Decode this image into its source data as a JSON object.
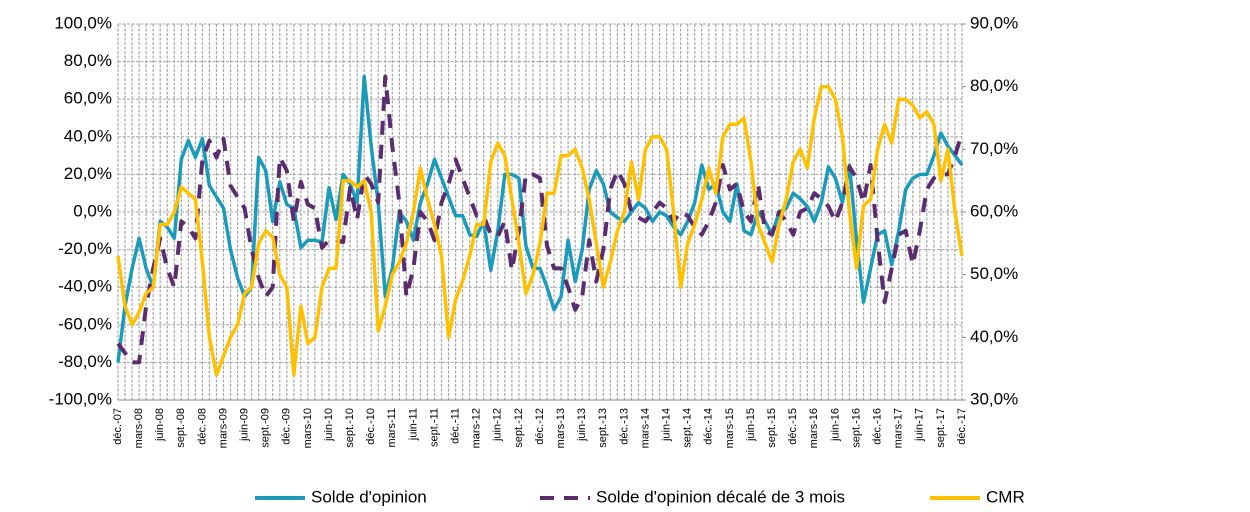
{
  "chart_data": {
    "type": "line",
    "categories": [
      "déc.-07",
      null,
      null,
      "mars-08",
      null,
      null,
      "juin-08",
      null,
      null,
      "sept.-08",
      null,
      null,
      "déc.-08",
      null,
      null,
      "mars-09",
      null,
      null,
      "juin-09",
      null,
      null,
      "sept.-09",
      null,
      null,
      "déc.-09",
      null,
      null,
      "mars-10",
      null,
      null,
      "juin-10",
      null,
      null,
      "sept.-10",
      null,
      null,
      "déc.-10",
      null,
      null,
      "mars-11",
      null,
      null,
      "juin-11",
      null,
      null,
      "sept.-11",
      null,
      null,
      "déc.-11",
      null,
      null,
      "mars-12",
      null,
      null,
      "juin-12",
      null,
      null,
      "sept.-12",
      null,
      null,
      "déc.-12",
      null,
      null,
      "mars-13",
      null,
      null,
      "juin-13",
      null,
      null,
      "sept.-13",
      null,
      null,
      "déc.-13",
      null,
      null,
      "mars-14",
      null,
      null,
      "juin-14",
      null,
      null,
      "sept.-14",
      null,
      null,
      "déc.-14",
      null,
      null,
      "mars-15",
      null,
      null,
      "juin-15",
      null,
      null,
      "sept.-15",
      null,
      null,
      "déc.-15",
      null,
      null,
      "mars-16",
      null,
      null,
      "juin-16",
      null,
      null,
      "sept.-16",
      null,
      null,
      "déc.-16",
      null,
      null,
      "mars-17",
      null,
      null,
      "juin-17",
      null,
      null,
      "sept.-17",
      null,
      null,
      "déc.-17"
    ],
    "series": [
      {
        "name": "Solde d'opinion",
        "color": "#1a9bbc",
        "dash": false,
        "values": [
          -80,
          -50,
          -30,
          -14,
          -30,
          -40,
          -5,
          -8,
          -14,
          28,
          38,
          29,
          39,
          14,
          8,
          2,
          -20,
          -35,
          -45,
          -40,
          29,
          22,
          -5,
          16,
          4,
          2,
          -19,
          -15,
          -15,
          -16,
          13,
          -4,
          20,
          15,
          5,
          72,
          35,
          5,
          -45,
          -30,
          0,
          -5,
          -15,
          5,
          15,
          28,
          18,
          8,
          -2,
          -2,
          -12,
          -13,
          -5,
          -31,
          -10,
          20,
          20,
          18,
          -18,
          -30,
          -30,
          -40,
          -52,
          -45,
          -15,
          -37,
          -20,
          12,
          22,
          15,
          0,
          -3,
          -5,
          0,
          5,
          2,
          -5,
          0,
          -2,
          -8,
          -12,
          -5,
          5,
          25,
          12,
          15,
          0,
          -5,
          15,
          -10,
          -12,
          0,
          -5,
          -12,
          0,
          2,
          10,
          7,
          3,
          -5,
          5,
          24,
          18,
          5,
          25,
          -15,
          -48,
          -30,
          -12,
          -10,
          -28,
          -10,
          12,
          18,
          20,
          20,
          30,
          42,
          35,
          30,
          25
        ]
      },
      {
        "name": "Solde d'opinion décalé de 3 mois",
        "color": "#5b2c6f",
        "dash": true,
        "values": [
          -70,
          -75,
          -80,
          -80,
          -50,
          -30,
          -14,
          -30,
          -40,
          -5,
          -8,
          -14,
          28,
          38,
          29,
          39,
          14,
          8,
          2,
          -20,
          -35,
          -45,
          -40,
          29,
          22,
          -5,
          16,
          4,
          2,
          -19,
          -15,
          -15,
          -16,
          13,
          -4,
          20,
          15,
          5,
          72,
          35,
          5,
          -45,
          -30,
          0,
          -5,
          -15,
          5,
          15,
          28,
          18,
          8,
          -2,
          -2,
          -12,
          -13,
          -5,
          -31,
          -10,
          20,
          20,
          18,
          -18,
          -30,
          -30,
          -40,
          -52,
          -45,
          -15,
          -37,
          -20,
          12,
          22,
          15,
          0,
          -3,
          -5,
          0,
          5,
          2,
          -5,
          0,
          -2,
          -8,
          -12,
          -5,
          5,
          25,
          12,
          15,
          0,
          -5,
          15,
          -10,
          -12,
          0,
          -5,
          -12,
          0,
          2,
          10,
          7,
          3,
          -5,
          5,
          24,
          18,
          5,
          25,
          -15,
          -48,
          -30,
          -12,
          -10,
          -28,
          -10,
          12,
          18,
          20,
          20,
          30,
          42
        ]
      },
      {
        "name": "CMR",
        "color": "#ffc000",
        "dash": false,
        "axis": "y2",
        "values": [
          53,
          45,
          42,
          44,
          47,
          48,
          58,
          58,
          60,
          64,
          63,
          62,
          52,
          40,
          34,
          37,
          40,
          42,
          47,
          48,
          55,
          57,
          56,
          50,
          48,
          34,
          45,
          39,
          40,
          48,
          51,
          51,
          65,
          65,
          64,
          65,
          60,
          41,
          45,
          50,
          52,
          55,
          60,
          67,
          62,
          58,
          53,
          40,
          46,
          49,
          53,
          58,
          58,
          68,
          71,
          69,
          62,
          55,
          47,
          50,
          55,
          63,
          63,
          69,
          69,
          70,
          67,
          62,
          55,
          48,
          52,
          57,
          60,
          68,
          62,
          70,
          72,
          72,
          70,
          60,
          48,
          55,
          58,
          62,
          67,
          63,
          72,
          74,
          74,
          75,
          68,
          58,
          55,
          52,
          58,
          62,
          68,
          70,
          67,
          75,
          80,
          80,
          78,
          72,
          60,
          51,
          61,
          62,
          70,
          74,
          71,
          78,
          78,
          77,
          75,
          76,
          74,
          65,
          70,
          60,
          53
        ]
      }
    ],
    "ylim": [
      -100,
      100
    ],
    "yticks": [
      {
        "value": -100,
        "label": "-100,0%"
      },
      {
        "value": -80,
        "label": "-80,0%"
      },
      {
        "value": -60,
        "label": "-60,0%"
      },
      {
        "value": -40,
        "label": "-40,0%"
      },
      {
        "value": -20,
        "label": "-20,0%"
      },
      {
        "value": 0,
        "label": "0,0%"
      },
      {
        "value": 20,
        "label": "20,0%"
      },
      {
        "value": 40,
        "label": "40,0%"
      },
      {
        "value": 60,
        "label": "60,0%"
      },
      {
        "value": 80,
        "label": "80,0%"
      },
      {
        "value": 100,
        "label": "100,0%"
      }
    ],
    "y2lim": [
      30,
      90
    ],
    "y2ticks": [
      {
        "value": 30,
        "label": "30,0%"
      },
      {
        "value": 40,
        "label": "40,0%"
      },
      {
        "value": 50,
        "label": "50,0%"
      },
      {
        "value": 60,
        "label": "60,0%"
      },
      {
        "value": 70,
        "label": "70,0%"
      },
      {
        "value": 80,
        "label": "80,0%"
      },
      {
        "value": 90,
        "label": "90,0%"
      }
    ],
    "grid": true,
    "legend": "bottom"
  }
}
